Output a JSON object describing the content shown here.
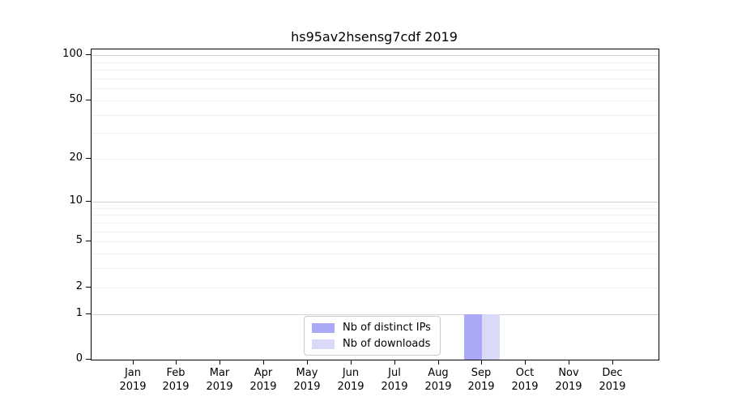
{
  "chart_data": {
    "type": "bar",
    "title": "hs95av2hsensg7cdf 2019",
    "categories": [
      "Jan",
      "Feb",
      "Mar",
      "Apr",
      "May",
      "Jun",
      "Jul",
      "Aug",
      "Sep",
      "Oct",
      "Nov",
      "Dec"
    ],
    "x_tick_second_line": "2019",
    "series": [
      {
        "name": "Nb of distinct IPs",
        "color": "#a9a9f6",
        "values": [
          0,
          0,
          0,
          0,
          0,
          0,
          0,
          0,
          1,
          0,
          0,
          0
        ]
      },
      {
        "name": "Nb of downloads",
        "color": "#dadaf8",
        "values": [
          0,
          0,
          0,
          0,
          0,
          0,
          0,
          0,
          1,
          0,
          0,
          0
        ]
      }
    ],
    "y_scale": "log1p",
    "y_ticks": [
      0,
      1,
      2,
      5,
      10,
      20,
      50,
      100
    ],
    "ylim": [
      0,
      113
    ],
    "grid": "horizontal",
    "grid_major": [
      1,
      10,
      100
    ],
    "grid_minor": [
      2,
      3,
      4,
      5,
      6,
      7,
      8,
      9,
      20,
      30,
      40,
      50,
      60,
      70,
      80,
      90
    ],
    "grid_major_color": "#d2d2d2",
    "grid_minor_color": "#efefef",
    "legend_position": "lower-center"
  }
}
